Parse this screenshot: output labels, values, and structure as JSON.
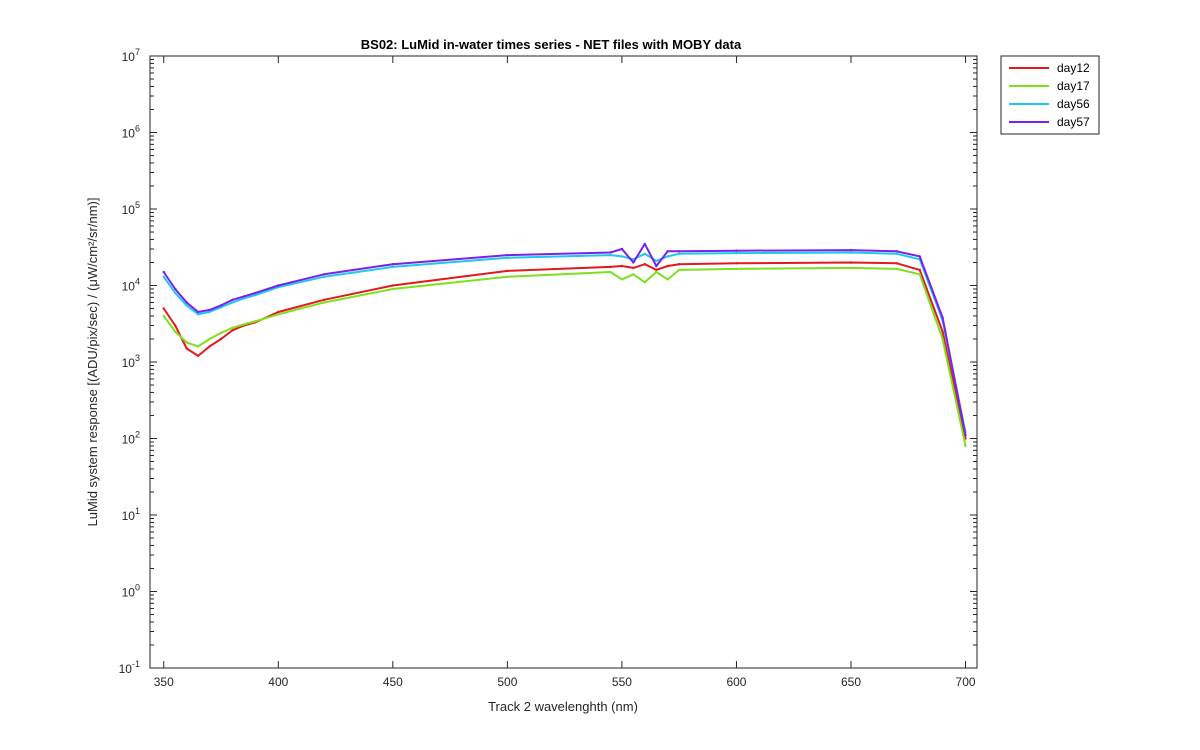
{
  "chart_data": {
    "type": "line",
    "title": "BS02: LuMid in-water times series - NET files with MOBY data",
    "xlabel": "Track 2 wavelenghth (nm)",
    "ylabel": "LuMid system response [(ADU/pix/sec) / (μW/cm²/sr/nm)]",
    "xlim": [
      344,
      705
    ],
    "ylim": [
      0.1,
      10000000
    ],
    "yscale": "log",
    "xticks": [
      350,
      400,
      450,
      500,
      550,
      600,
      650,
      700
    ],
    "yticks": [
      {
        "value": 0.1,
        "exp": "-1"
      },
      {
        "value": 1,
        "exp": "0"
      },
      {
        "value": 10,
        "exp": "1"
      },
      {
        "value": 100,
        "exp": "2"
      },
      {
        "value": 1000,
        "exp": "3"
      },
      {
        "value": 10000,
        "exp": "4"
      },
      {
        "value": 100000,
        "exp": "5"
      },
      {
        "value": 1000000,
        "exp": "6"
      },
      {
        "value": 10000000,
        "exp": "7"
      }
    ],
    "ytick_base": "10",
    "grid": false,
    "legend_position": "outside-top-right",
    "series": [
      {
        "name": "day12",
        "color": "#e31a1c",
        "x": [
          350,
          355,
          360,
          365,
          370,
          375,
          380,
          385,
          390,
          400,
          420,
          450,
          500,
          545,
          550,
          555,
          560,
          565,
          570,
          575,
          600,
          650,
          670,
          680,
          690,
          700
        ],
        "y": [
          5000,
          3000,
          1500,
          1200,
          1600,
          2000,
          2600,
          3000,
          3300,
          4500,
          6500,
          10000,
          15500,
          17500,
          18000,
          17000,
          19000,
          16000,
          18000,
          19000,
          19500,
          20000,
          19500,
          16000,
          2500,
          100
        ]
      },
      {
        "name": "day17",
        "color": "#7fe01f",
        "x": [
          350,
          355,
          360,
          365,
          370,
          375,
          380,
          385,
          390,
          400,
          420,
          450,
          500,
          545,
          550,
          555,
          560,
          565,
          570,
          575,
          600,
          650,
          670,
          680,
          690,
          700
        ],
        "y": [
          4000,
          2500,
          1800,
          1600,
          2000,
          2400,
          2800,
          3100,
          3400,
          4200,
          6000,
          9000,
          13000,
          15000,
          12000,
          14000,
          11000,
          15000,
          12000,
          16000,
          16500,
          17000,
          16500,
          14000,
          2000,
          80
        ]
      },
      {
        "name": "day56",
        "color": "#20c8f0",
        "x": [
          350,
          355,
          360,
          365,
          370,
          375,
          380,
          385,
          390,
          400,
          420,
          450,
          500,
          545,
          550,
          555,
          560,
          565,
          570,
          575,
          600,
          650,
          670,
          680,
          690,
          700
        ],
        "y": [
          13000,
          8000,
          5500,
          4200,
          4500,
          5200,
          6000,
          6800,
          7500,
          9500,
          13000,
          17500,
          23000,
          25000,
          24000,
          22000,
          26000,
          21000,
          24000,
          26000,
          26500,
          27000,
          26000,
          22000,
          3500,
          120
        ]
      },
      {
        "name": "day57",
        "color": "#7b22e8",
        "x": [
          350,
          355,
          360,
          365,
          370,
          375,
          380,
          385,
          390,
          400,
          420,
          450,
          500,
          545,
          550,
          555,
          560,
          565,
          570,
          575,
          600,
          650,
          670,
          680,
          690,
          700
        ],
        "y": [
          15000,
          9000,
          6000,
          4500,
          4800,
          5500,
          6500,
          7200,
          8000,
          10000,
          14000,
          19000,
          25000,
          27000,
          30000,
          20000,
          35000,
          18000,
          28000,
          28000,
          28500,
          29000,
          28000,
          24000,
          3800,
          110
        ]
      }
    ]
  }
}
